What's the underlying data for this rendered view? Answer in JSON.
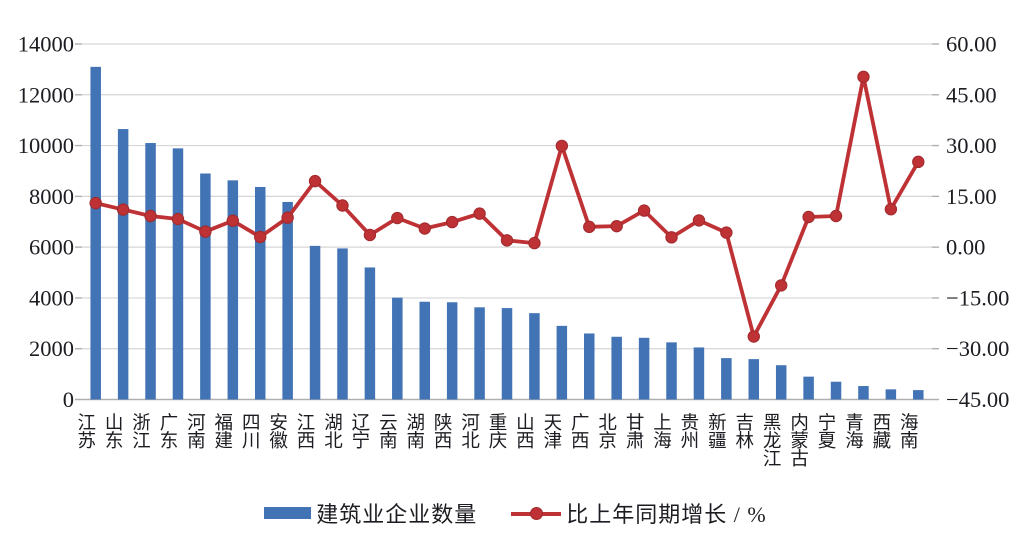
{
  "chart_data": {
    "type": "combo",
    "categories": [
      "江苏",
      "山东",
      "浙江",
      "广东",
      "河南",
      "福建",
      "四川",
      "安徽",
      "江西",
      "湖北",
      "辽宁",
      "云南",
      "湖南",
      "陕西",
      "河北",
      "重庆",
      "山西",
      "天津",
      "广西",
      "北京",
      "甘肃",
      "上海",
      "贵州",
      "新疆",
      "吉林",
      "黑龙江",
      "内蒙古",
      "宁夏",
      "青海",
      "西藏",
      "海南"
    ],
    "series": [
      {
        "name": "建筑业企业数量",
        "type": "bar",
        "axis": "left",
        "values": [
          13100,
          10650,
          10100,
          9890,
          8900,
          8630,
          8370,
          7780,
          6050,
          5950,
          5200,
          4010,
          3850,
          3830,
          3630,
          3600,
          3400,
          2900,
          2600,
          2470,
          2430,
          2250,
          2050,
          1630,
          1590,
          1350,
          900,
          700,
          530,
          400,
          370
        ]
      },
      {
        "name": "比上年同期增长 / %",
        "type": "line",
        "axis": "right",
        "values": [
          13.0,
          11.1,
          9.2,
          8.3,
          4.6,
          7.8,
          3.0,
          8.7,
          19.5,
          12.3,
          3.6,
          8.6,
          5.5,
          7.4,
          9.9,
          2.0,
          1.2,
          29.9,
          6.0,
          6.2,
          10.8,
          2.9,
          7.9,
          4.3,
          -26.4,
          -11.3,
          8.9,
          9.2,
          50.3,
          11.2,
          25.2
        ]
      }
    ],
    "left_axis": {
      "min": 0,
      "max": 14000,
      "step": 2000,
      "labels": [
        "14000",
        "12000",
        "10000",
        "8000",
        "6000",
        "4000",
        "2000",
        "0"
      ]
    },
    "right_axis": {
      "min": -45,
      "max": 60,
      "step": 15,
      "labels": [
        "60.00",
        "45.00",
        "30.00",
        "15.00",
        "0.00",
        "−15.00",
        "−30.00",
        "−45.00"
      ]
    },
    "grid": true,
    "legend_position": "bottom"
  },
  "colors": {
    "bar": "#4173B5",
    "line": "#BE3134",
    "marker_edge": "#A02A2D",
    "grid": "#D6D6D6",
    "axis_line": "#AFAFAF",
    "text": "#1C1C22"
  }
}
